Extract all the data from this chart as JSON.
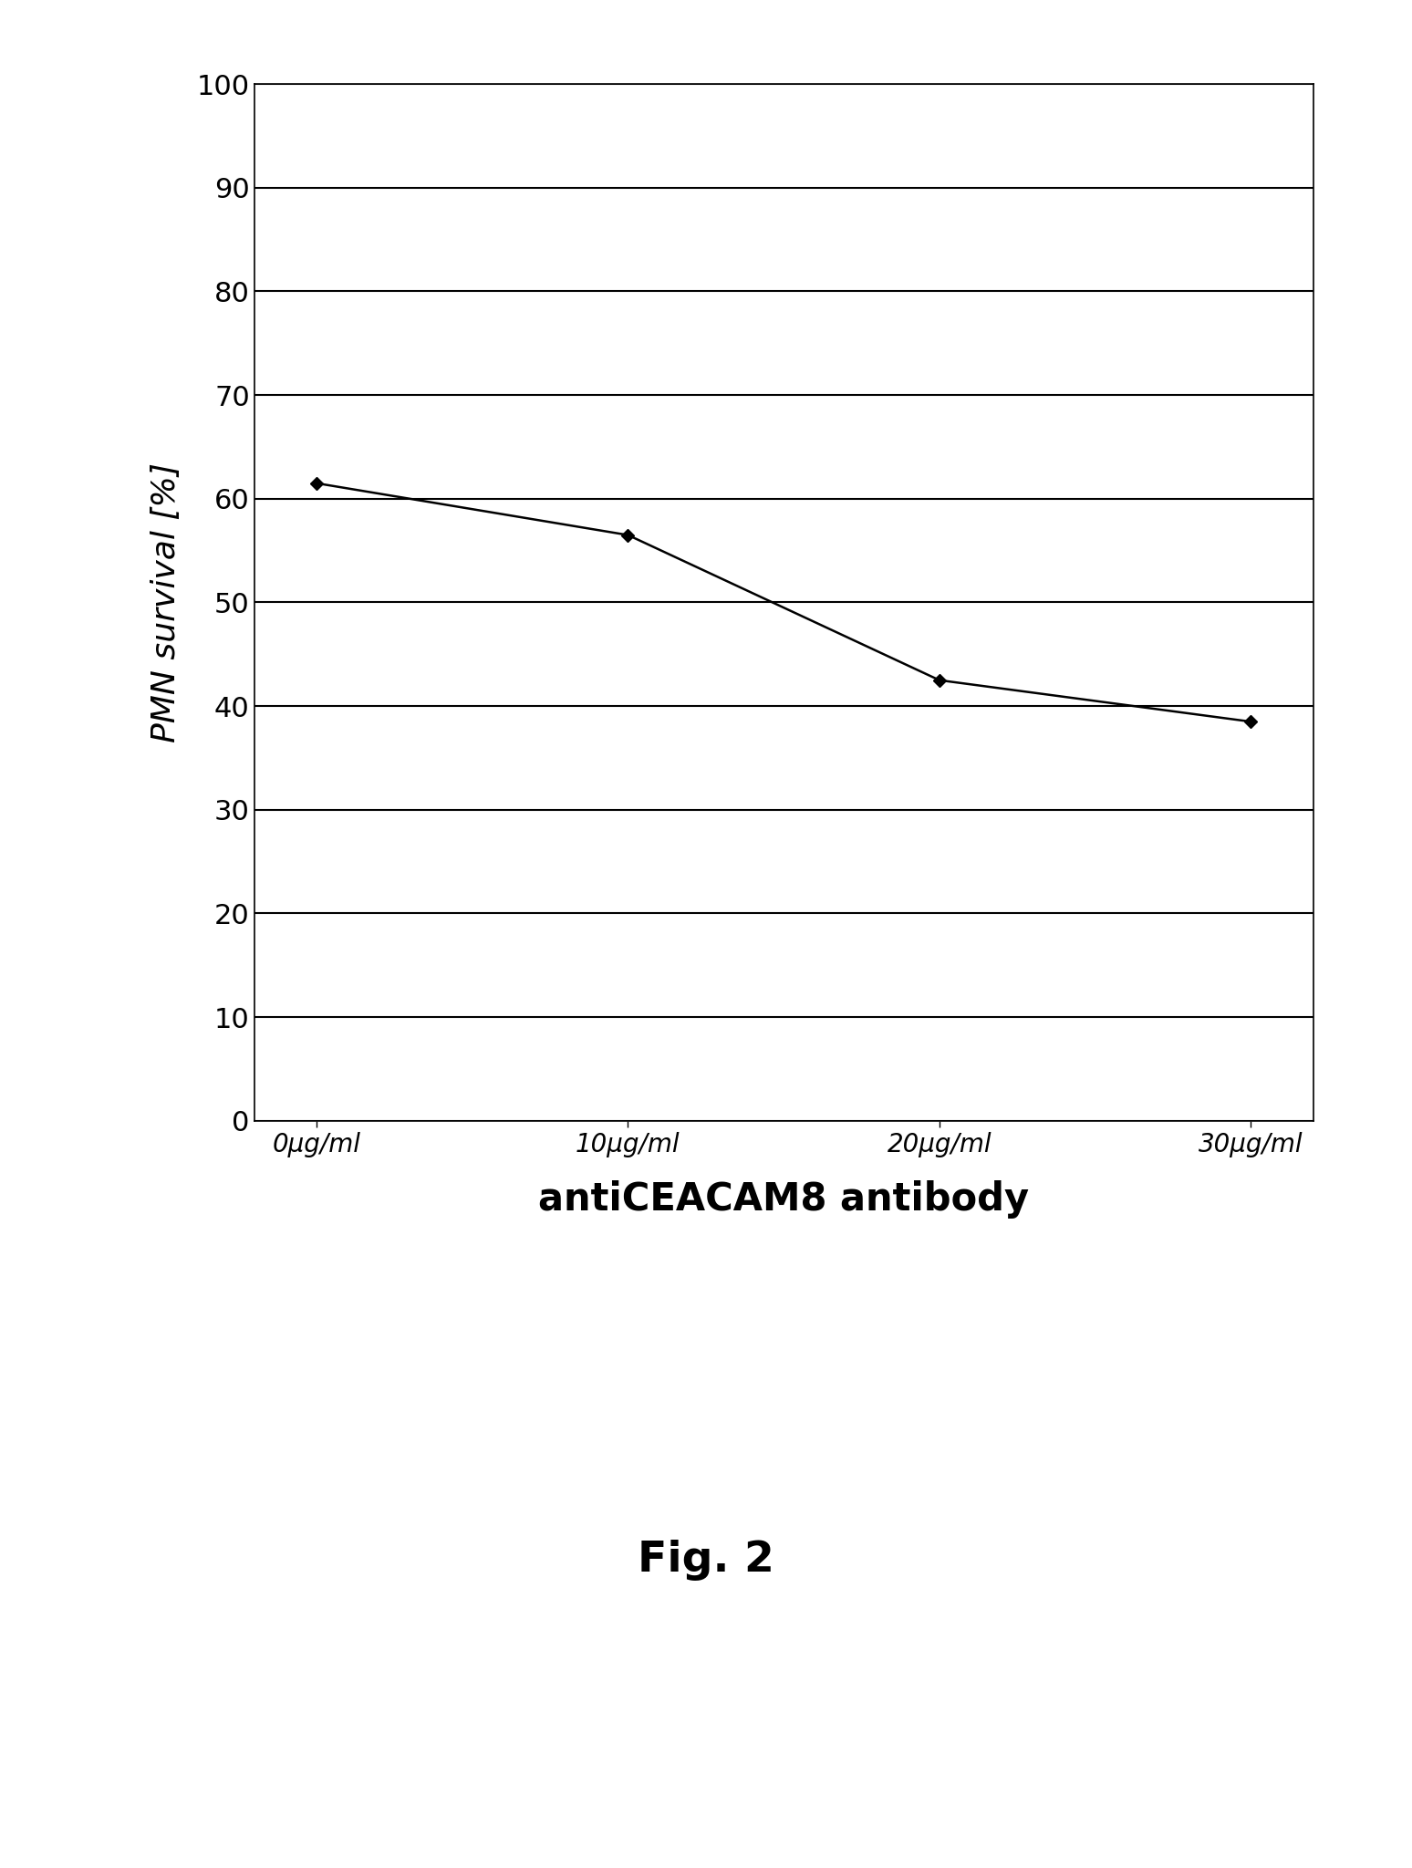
{
  "x_values": [
    0,
    10,
    20,
    30
  ],
  "y_values": [
    61.5,
    56.5,
    42.5,
    38.5
  ],
  "x_tick_labels": [
    "0μg/ml",
    "10μg/ml",
    "20μg/ml",
    "30μg/ml"
  ],
  "xlabel": "antiCEACAM8 antibody",
  "ylabel": "PMN survival [%]",
  "ylim": [
    0,
    100
  ],
  "yticks": [
    0,
    10,
    20,
    30,
    40,
    50,
    60,
    70,
    80,
    90,
    100
  ],
  "line_color": "#000000",
  "marker": "D",
  "marker_size": 7,
  "marker_color": "#000000",
  "line_width": 1.8,
  "grid_linewidth": 1.5,
  "grid_color": "#000000",
  "fig_caption": "Fig. 2",
  "background_color": "#ffffff",
  "ylabel_fontsize": 26,
  "xlabel_fontsize": 30,
  "ytick_fontsize": 22,
  "xtick_fontsize": 20,
  "caption_fontsize": 34
}
